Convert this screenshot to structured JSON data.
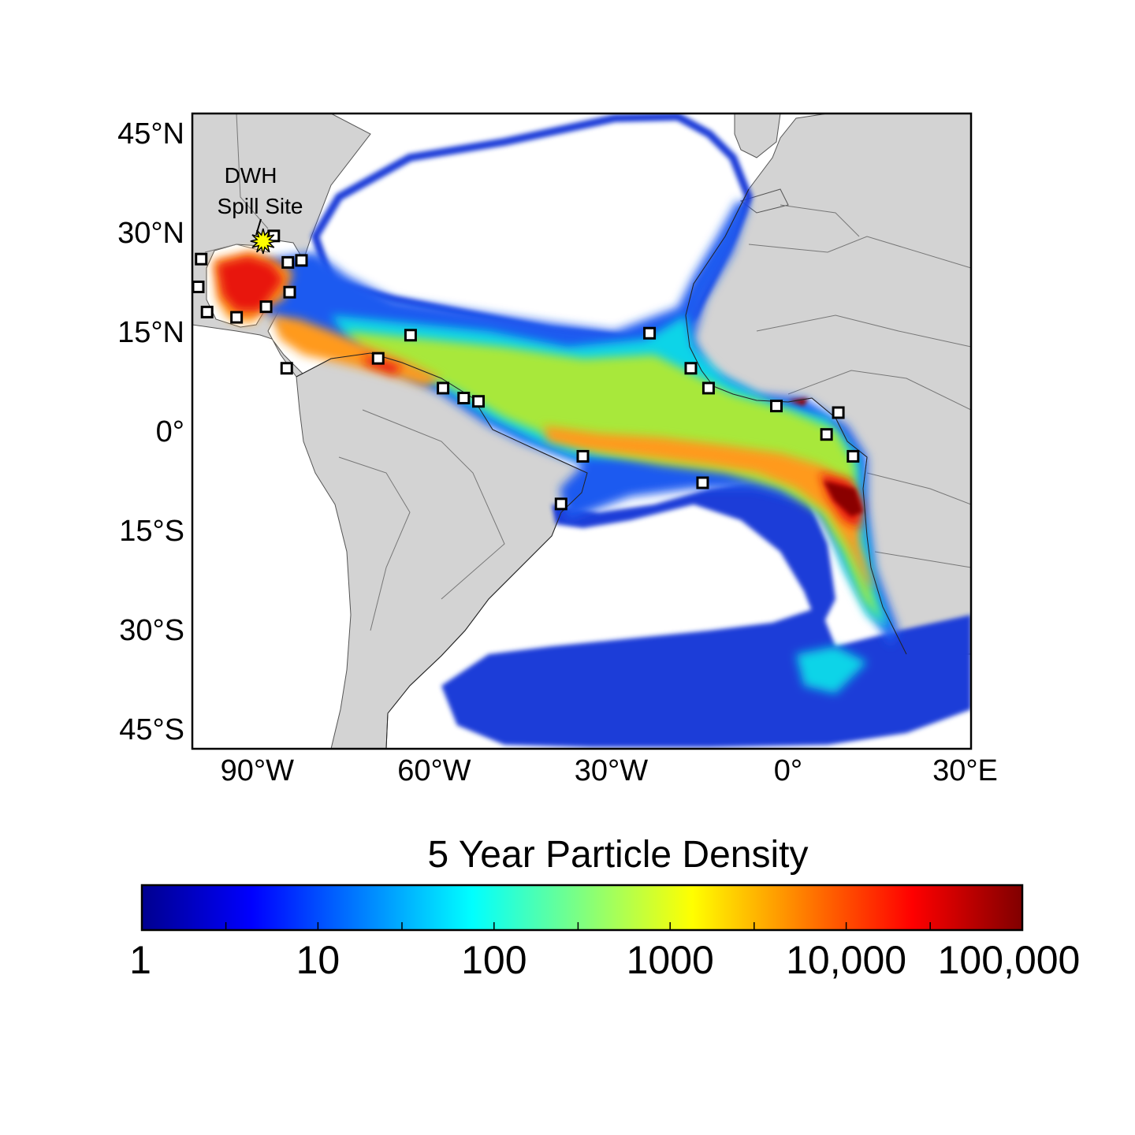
{
  "map": {
    "lat_labels": [
      {
        "text": "45°N",
        "lat": 45
      },
      {
        "text": "30°N",
        "lat": 30
      },
      {
        "text": "15°N",
        "lat": 15
      },
      {
        "text": "0°",
        "lat": 0
      },
      {
        "text": "15°S",
        "lat": -15
      },
      {
        "text": "30°S",
        "lat": -30
      },
      {
        "text": "45°S",
        "lat": -45
      }
    ],
    "lon_labels": [
      {
        "text": "90°W",
        "lon": -90
      },
      {
        "text": "60°W",
        "lon": -60
      },
      {
        "text": "30°W",
        "lon": -30
      },
      {
        "text": "0°",
        "lon": 0
      },
      {
        "text": "30°E",
        "lon": 30
      }
    ],
    "extent": {
      "lon_min": -101,
      "lon_max": 31,
      "lat_min": -48,
      "lat_max": 48
    },
    "annotation": {
      "line1": "DWH",
      "line2": "Spill Site"
    },
    "spill_site": {
      "lon": -89,
      "lat": 28.7
    },
    "sites": [
      [
        -99.5,
        26
      ],
      [
        -100,
        21.8
      ],
      [
        -98.5,
        18
      ],
      [
        -93.5,
        17.2
      ],
      [
        -88.5,
        18.8
      ],
      [
        -84.5,
        21
      ],
      [
        -84.8,
        25.5
      ],
      [
        -82.5,
        25.8
      ],
      [
        -87.2,
        29.5
      ],
      [
        -85,
        9.5
      ],
      [
        -69.5,
        11
      ],
      [
        -64,
        14.5
      ],
      [
        -58.5,
        6.5
      ],
      [
        -55,
        5
      ],
      [
        -52.5,
        4.5
      ],
      [
        -34.8,
        -3.8
      ],
      [
        -38.5,
        -11
      ],
      [
        -23.5,
        14.8
      ],
      [
        -16.5,
        9.5
      ],
      [
        -13.5,
        6.5
      ],
      [
        -2,
        3.8
      ],
      [
        6.5,
        -0.5
      ],
      [
        8.5,
        2.8
      ],
      [
        11,
        -3.8
      ],
      [
        -14.5,
        -7.8
      ]
    ],
    "colors": {
      "land": "#d3d3d3",
      "ocean": "#ffffff",
      "marker_star": "#ffff00"
    }
  },
  "colorbar": {
    "title": "5 Year Particle Density",
    "labels": [
      "1",
      "10",
      "100",
      "1000",
      "10,000",
      "100,000"
    ],
    "scale": "log",
    "range": [
      1,
      100000
    ],
    "colormap": "jet"
  }
}
